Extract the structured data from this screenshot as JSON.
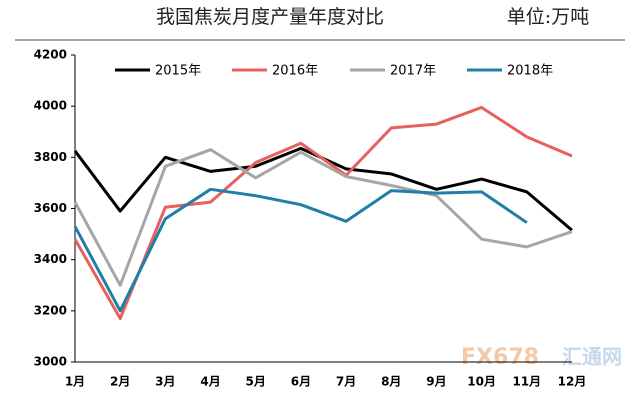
{
  "chart_data": {
    "type": "line",
    "title": "我国焦炭月度产量年度对比",
    "unit": "单位:万吨",
    "categories": [
      "1月",
      "2月",
      "3月",
      "4月",
      "5月",
      "6月",
      "7月",
      "8月",
      "9月",
      "10月",
      "11月",
      "12月"
    ],
    "series": [
      {
        "name": "2015年",
        "color": "#000000",
        "values": [
          3825,
          3590,
          3800,
          3745,
          3765,
          3835,
          3755,
          3735,
          3675,
          3715,
          3665,
          3515
        ]
      },
      {
        "name": "2016年",
        "color": "#e8605d",
        "values": [
          3480,
          3170,
          3605,
          3625,
          3780,
          3855,
          3730,
          3915,
          3930,
          3995,
          3880,
          3805
        ]
      },
      {
        "name": "2017年",
        "color": "#a6a6a6",
        "values": [
          3625,
          3300,
          3765,
          3830,
          3720,
          3820,
          3725,
          3690,
          3650,
          3480,
          3450,
          3510
        ]
      },
      {
        "name": "2018年",
        "color": "#1f7fa6",
        "values": [
          3530,
          3200,
          3560,
          3675,
          3650,
          3615,
          3550,
          3670,
          3660,
          3665,
          3545,
          null
        ]
      }
    ],
    "ylim": [
      3000,
      4200
    ],
    "yticks": [
      3000,
      3200,
      3400,
      3600,
      3800,
      4000,
      4200
    ],
    "watermark": [
      "FX678",
      "汇通网"
    ]
  }
}
